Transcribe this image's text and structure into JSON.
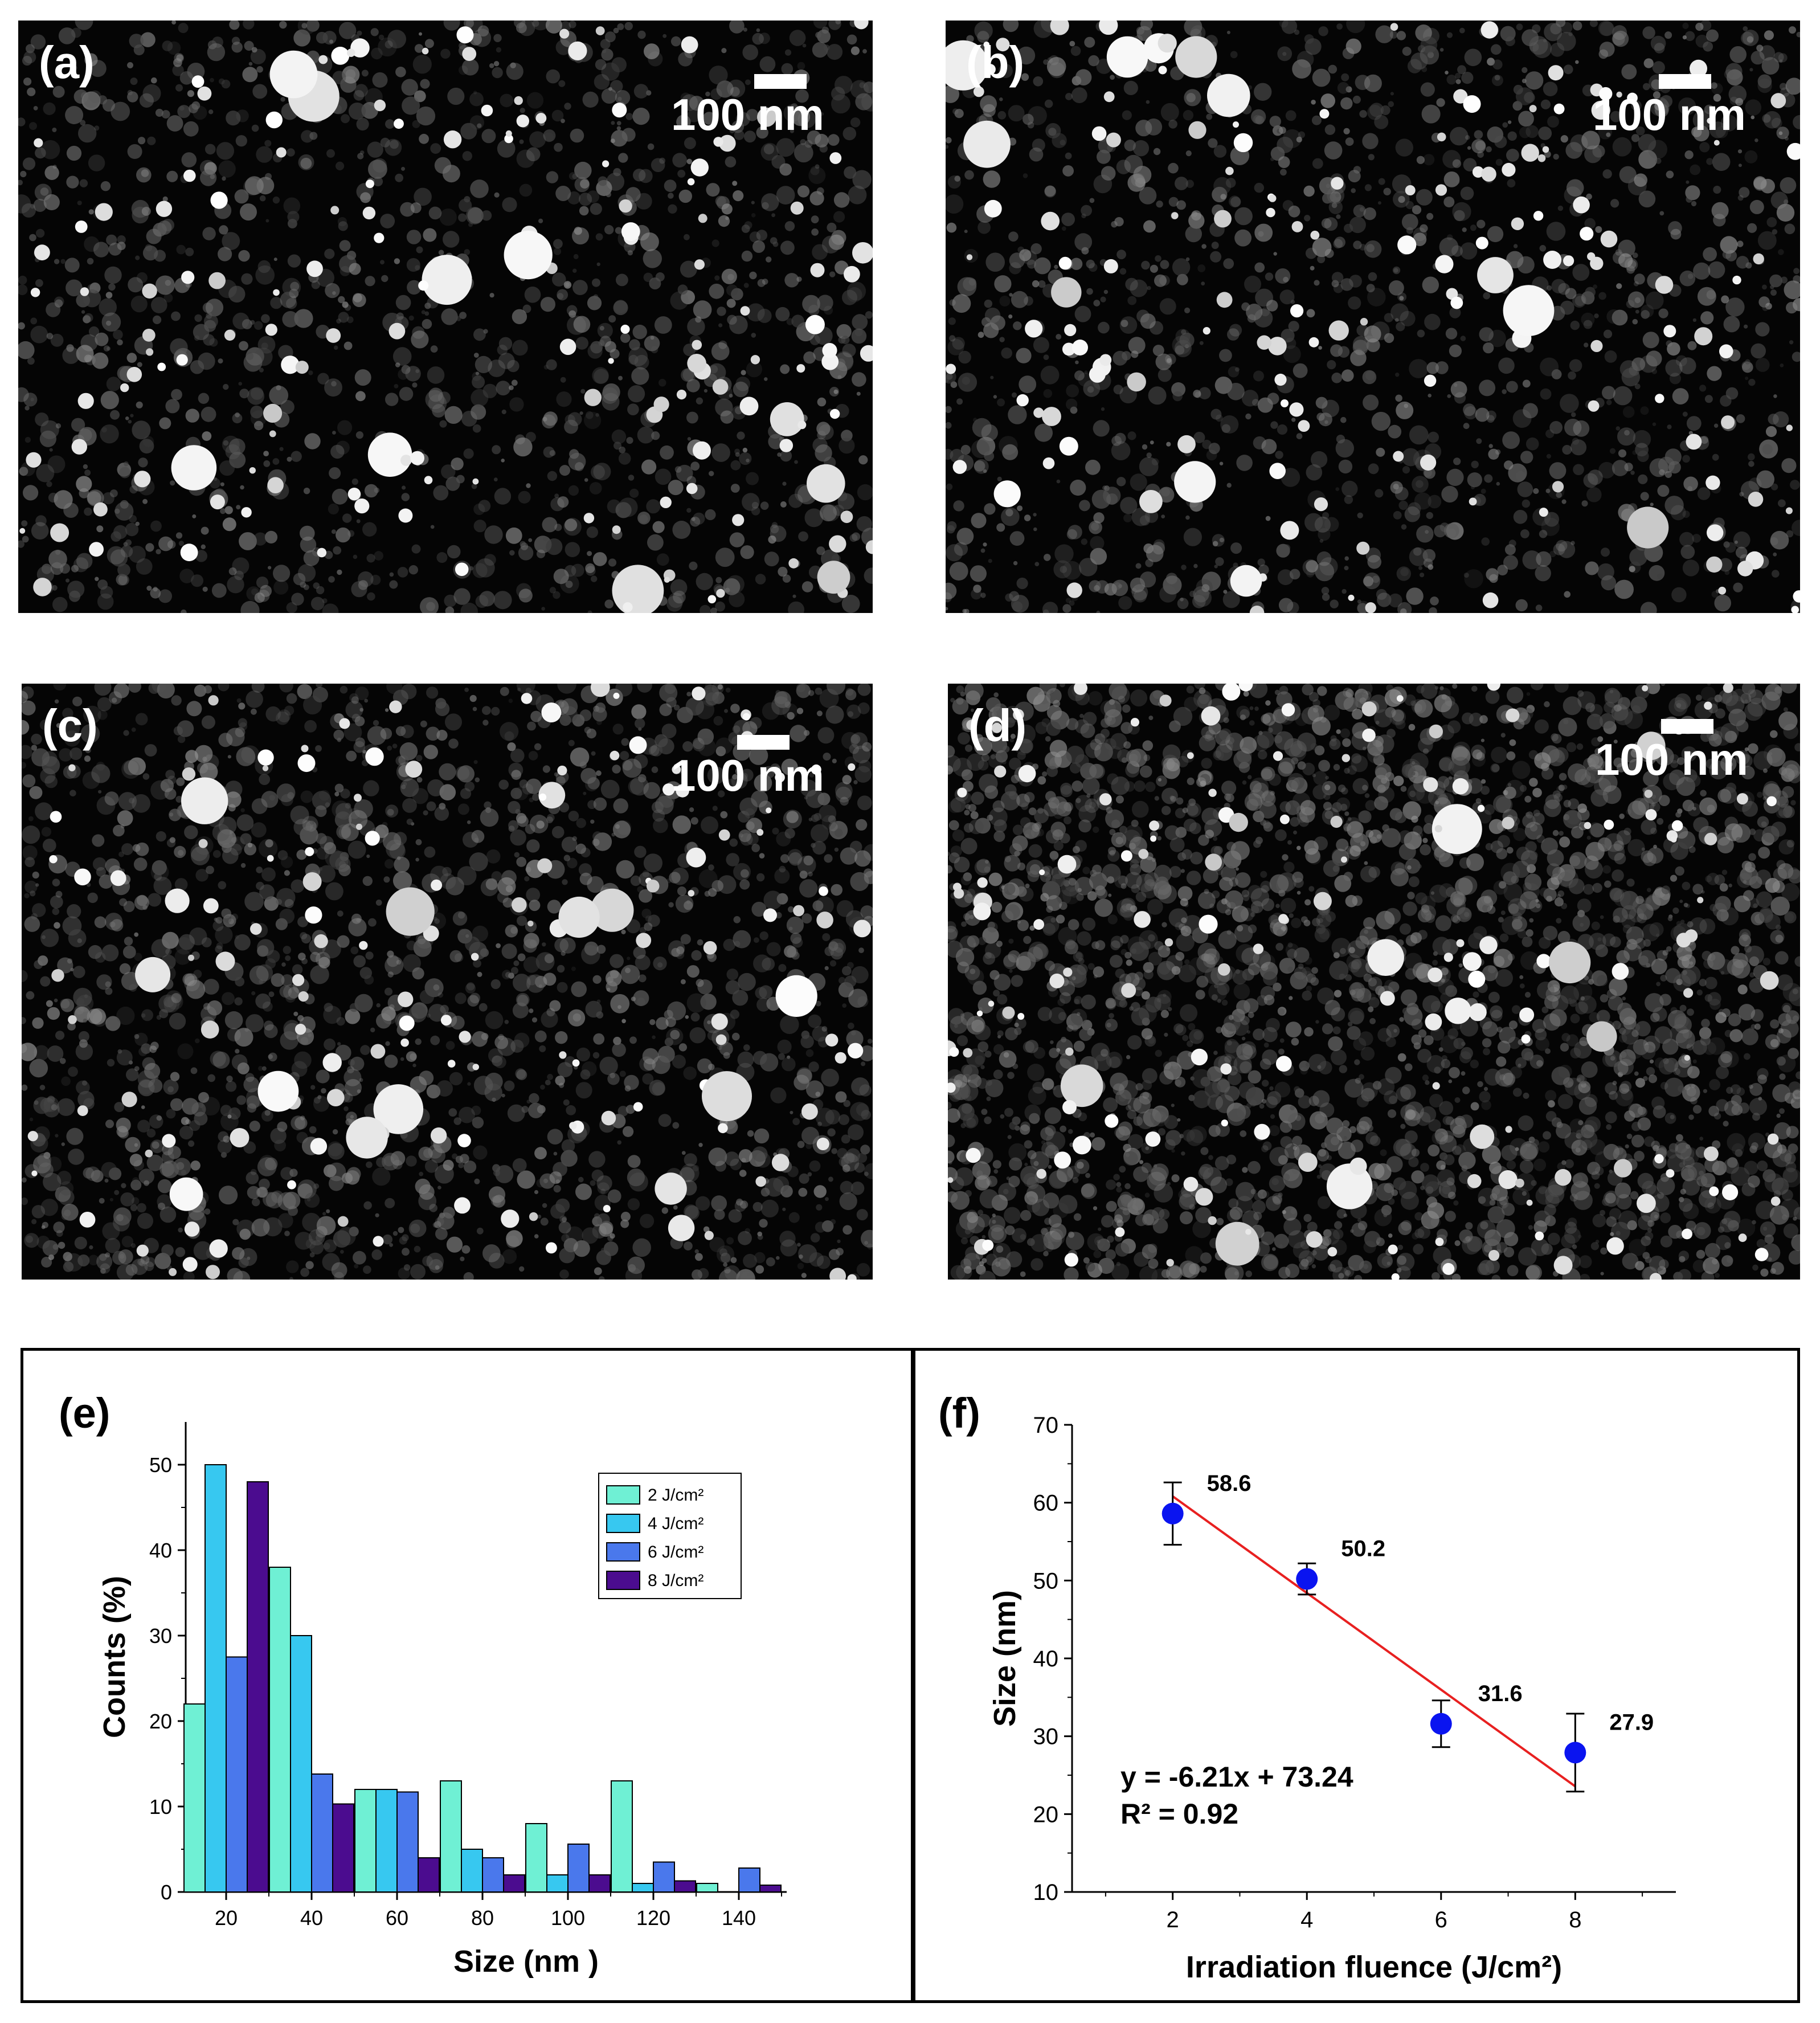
{
  "micrographs": [
    {
      "id": "a",
      "label": "(a)",
      "scale": "100 nm"
    },
    {
      "id": "b",
      "label": "(b)",
      "scale": "100 nm"
    },
    {
      "id": "c",
      "label": "(c)",
      "scale": "100 nm"
    },
    {
      "id": "d",
      "label": "(d)",
      "scale": "100 nm"
    }
  ],
  "chart_data": [
    {
      "panel": "(e)",
      "type": "bar",
      "categories": [
        "20",
        "40",
        "60",
        "80",
        "100",
        "120",
        "140"
      ],
      "series": [
        {
          "name": "2 J/cm²",
          "color": "#6ff0d4",
          "values": [
            22,
            38,
            12,
            13,
            8,
            13,
            1
          ]
        },
        {
          "name": "4 J/cm²",
          "color": "#37c8f0",
          "values": [
            50,
            30,
            12,
            5,
            2,
            1,
            0
          ]
        },
        {
          "name": "6 J/cm²",
          "color": "#4a78ec",
          "values": [
            27.5,
            13.8,
            11.7,
            4,
            5.6,
            3.5,
            2.8
          ]
        },
        {
          "name": "8 J/cm²",
          "color": "#4b0c8f",
          "values": [
            48,
            10.3,
            4,
            2,
            2,
            1.3,
            0.8
          ]
        }
      ],
      "xlabel": "Size (nm )",
      "ylabel": "Counts (%)",
      "xticks": [
        "20",
        "40",
        "60",
        "80",
        "100",
        "120",
        "140"
      ],
      "yticks": [
        "0",
        "10",
        "20",
        "30",
        "40",
        "50"
      ],
      "ylim": [
        0,
        55
      ],
      "legend_position": "top-right"
    },
    {
      "panel": "(f)",
      "type": "scatter",
      "x": [
        2,
        4,
        6,
        8
      ],
      "y": [
        58.6,
        50.2,
        31.6,
        27.9
      ],
      "error": [
        4,
        2,
        3,
        5
      ],
      "point_labels": [
        "58.6",
        "50.2",
        "31.6",
        "27.9"
      ],
      "point_color": "#0a14f0",
      "fit": {
        "slope": -6.21,
        "intercept": 73.24,
        "color": "#e82020",
        "equation": "y = -6.21x + 73.24",
        "r2": "R² = 0.92"
      },
      "xlabel": "Irradiation fluence (J/cm²)",
      "ylabel": "Size (nm)",
      "xticks": [
        "2",
        "4",
        "6",
        "8"
      ],
      "yticks": [
        "10",
        "20",
        "30",
        "40",
        "50",
        "60",
        "70"
      ],
      "xlim": [
        0.5,
        9.5
      ],
      "ylim": [
        10,
        70
      ]
    }
  ]
}
